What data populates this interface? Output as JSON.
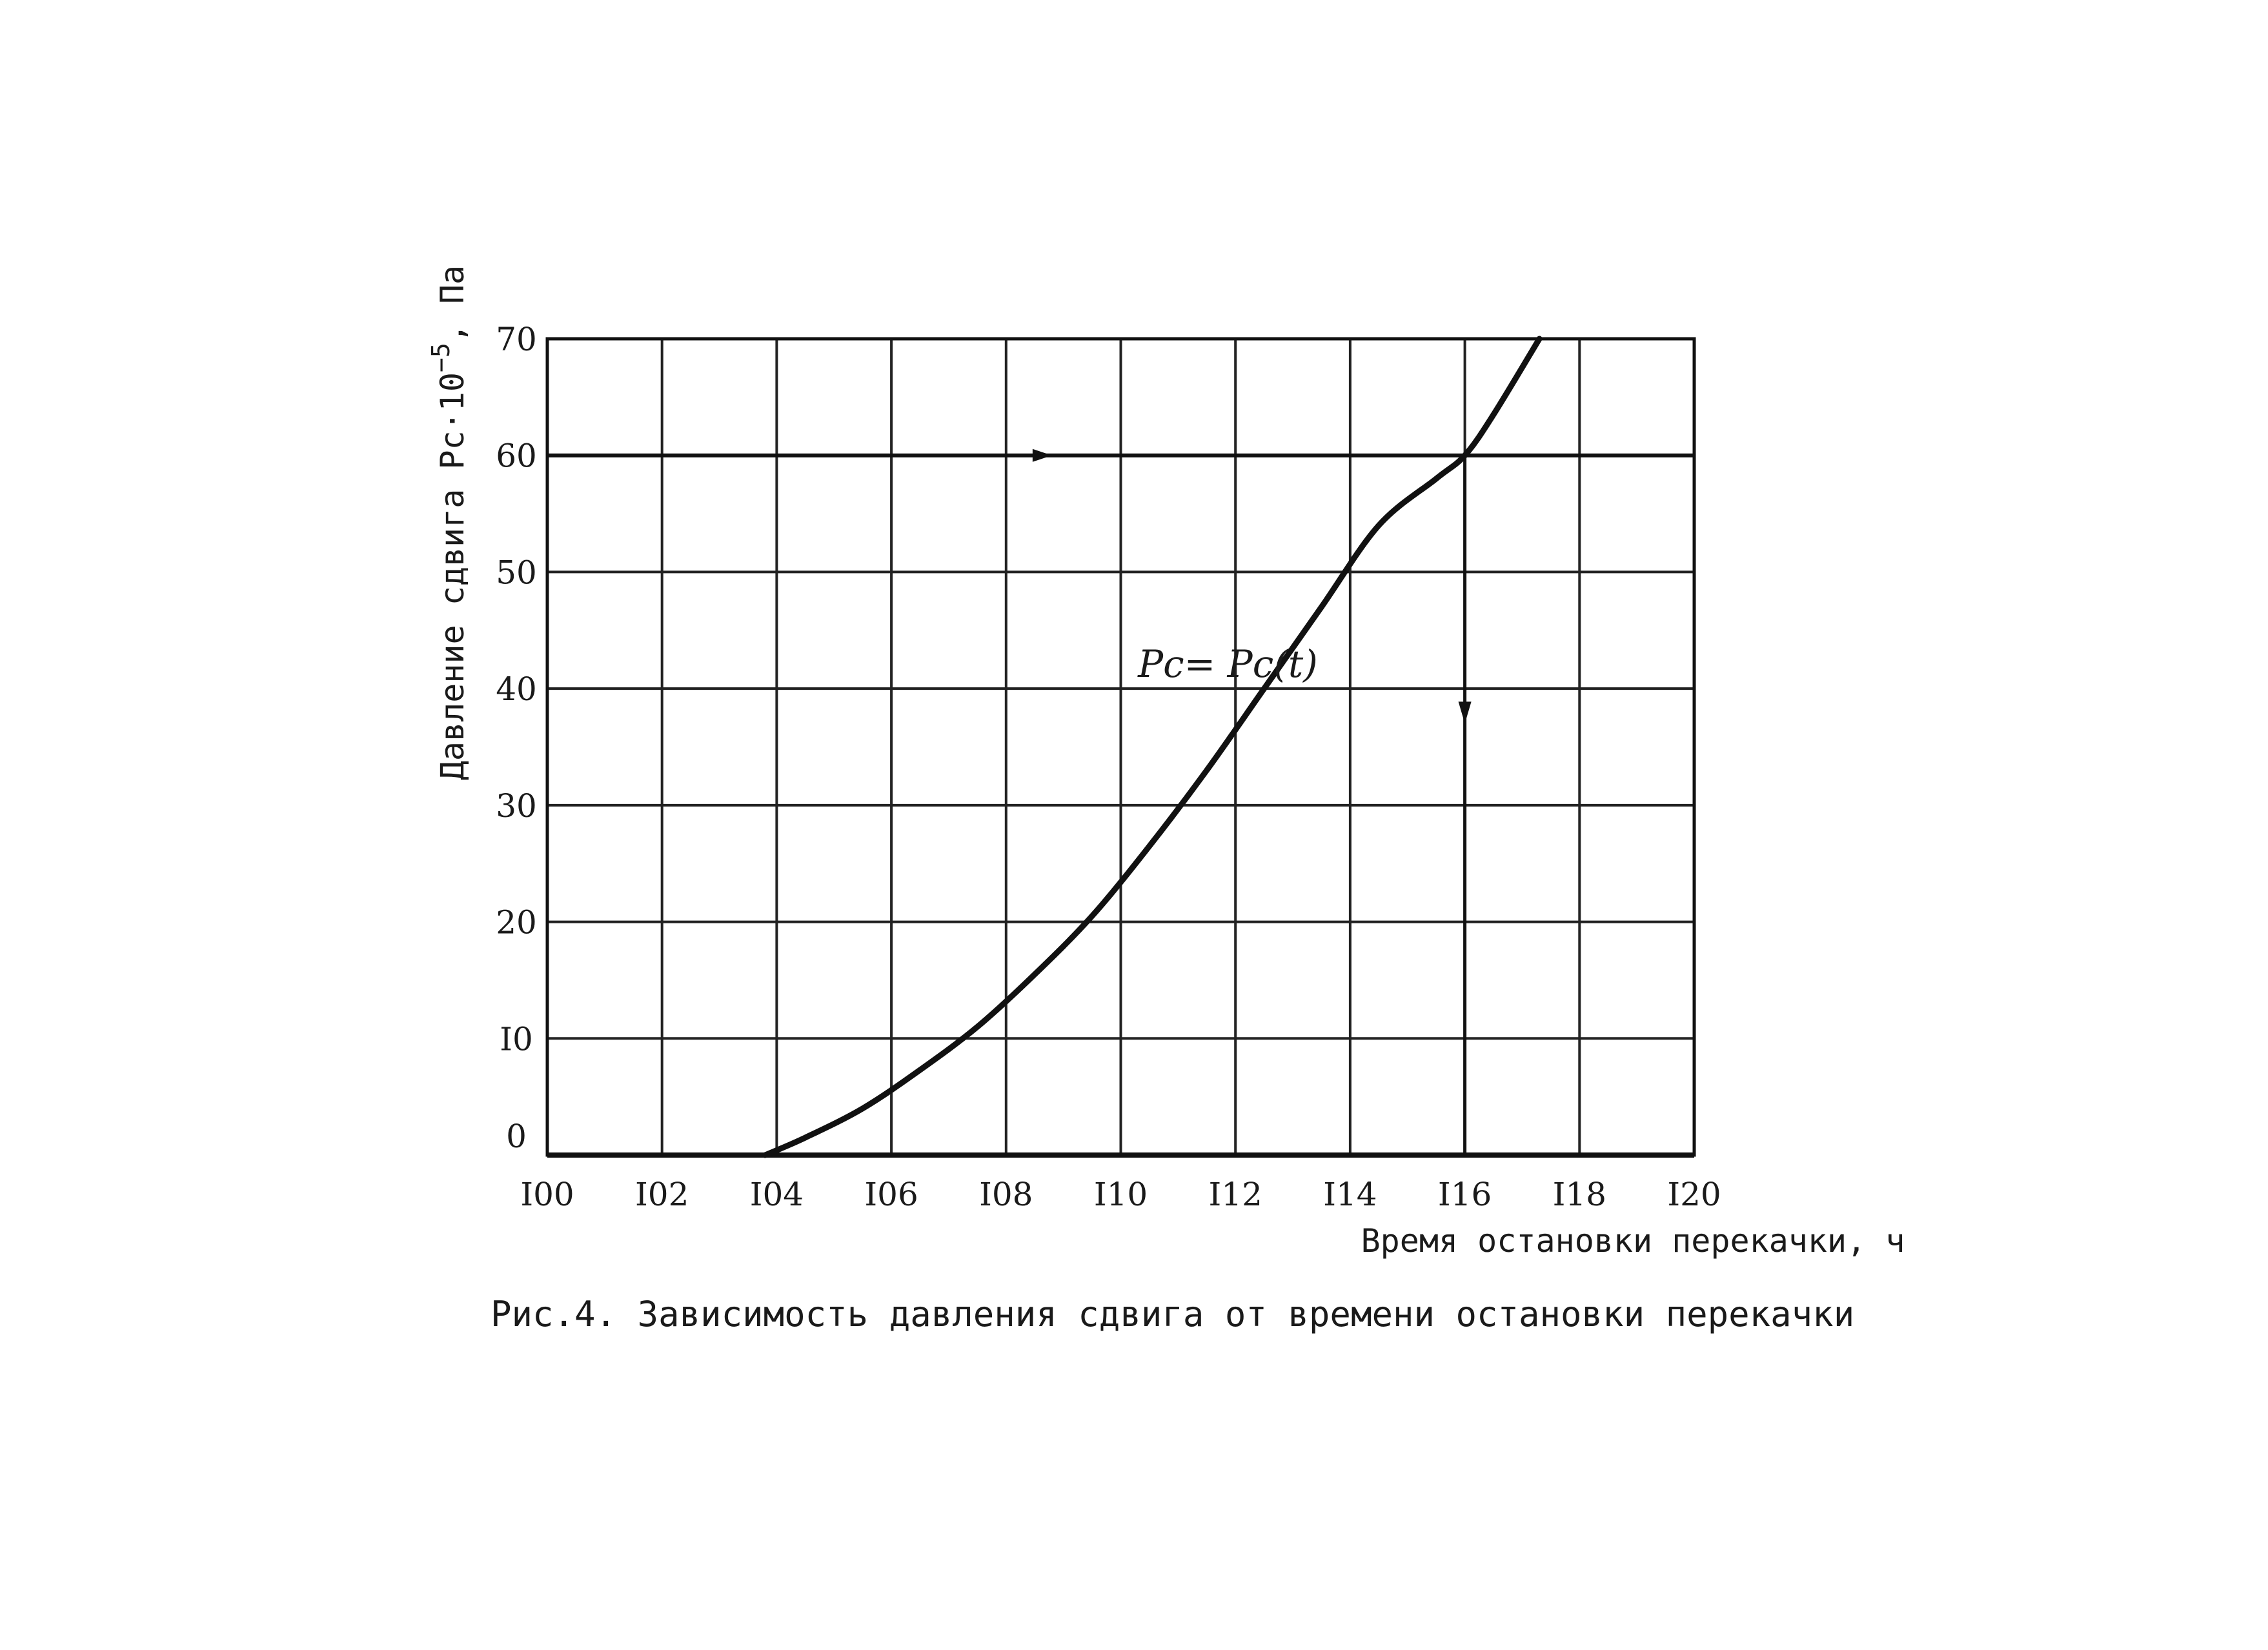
{
  "chart_data": {
    "type": "line",
    "xlabel": "Время остановки перекачки, ч",
    "ylabel_prefix": "Давление сдвига Рс·10",
    "ylabel_exponent": "−5",
    "ylabel_suffix": ", Па",
    "xlim": [
      100,
      120
    ],
    "ylim": [
      0,
      70
    ],
    "grid": true,
    "x_ticks": [
      100,
      102,
      104,
      106,
      108,
      110,
      112,
      114,
      116,
      118,
      120
    ],
    "x_tick_labels": [
      "I00",
      "I02",
      "I04",
      "I06",
      "I08",
      "I10",
      "I12",
      "I14",
      "I16",
      "I18",
      "I20"
    ],
    "y_ticks": [
      0,
      10,
      20,
      30,
      40,
      50,
      60,
      70
    ],
    "y_tick_labels": [
      "0",
      "I0",
      "20",
      "30",
      "40",
      "50",
      "60",
      "70"
    ],
    "series": [
      {
        "name": "Pc = Pc(t)",
        "x": [
          103.8,
          104.5,
          105.5,
          106.5,
          107.5,
          108.5,
          109.5,
          110.5,
          111.5,
          112.5,
          113.5,
          114.5,
          115.5,
          116.0,
          116.5,
          117.3
        ],
        "y": [
          0,
          1.5,
          4.0,
          7.3,
          11.0,
          15.5,
          20.5,
          26.5,
          33.0,
          40.0,
          47.0,
          54.0,
          58.0,
          60.0,
          63.5,
          70.0
        ]
      }
    ],
    "annotations": {
      "curve_label": "Pc= Pc(t)",
      "curve_label_x": 110.3,
      "curve_label_y": 41,
      "horizontal_line": {
        "y": 60,
        "x_from": 100,
        "x_to": 120,
        "arrow_at_x": 108.8
      },
      "vertical_line": {
        "x": 116.0,
        "y_from": 60,
        "y_to": 0,
        "arrow_at_y": 37
      }
    }
  },
  "caption": "Рис.4. Зависимость давления сдвига от времени остановки перекачки"
}
